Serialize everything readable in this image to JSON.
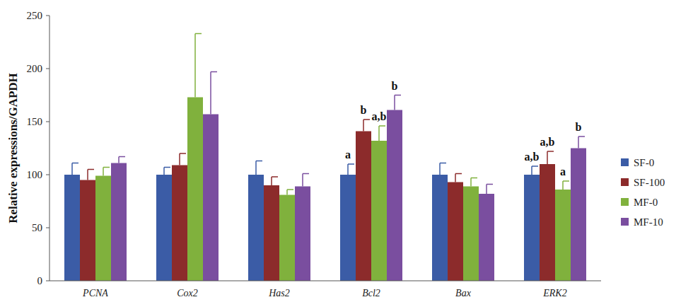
{
  "chart_data": {
    "type": "bar",
    "y_label": "Relative expressions/GAPDH",
    "categories": [
      "PCNA",
      "Cox2",
      "Has2",
      "Bcl2",
      "Bax",
      "ERK2"
    ],
    "series": [
      {
        "name": "SF-0",
        "color": "#3b5ca6",
        "values": [
          100,
          100,
          100,
          100,
          100,
          100
        ],
        "errors": [
          11,
          7,
          13,
          10,
          11,
          8
        ],
        "letters": [
          null,
          null,
          null,
          "a",
          null,
          "a,b"
        ]
      },
      {
        "name": "SF-100",
        "color": "#8c2b2b",
        "values": [
          95,
          109,
          90,
          141,
          93,
          110
        ],
        "errors": [
          10,
          11,
          8,
          11,
          8,
          12
        ],
        "letters": [
          null,
          null,
          null,
          "b",
          null,
          "a,b"
        ]
      },
      {
        "name": "MF-0",
        "color": "#80b13d",
        "values": [
          99,
          173,
          81,
          132,
          89,
          86
        ],
        "errors": [
          8,
          60,
          5,
          14,
          8,
          8
        ],
        "letters": [
          null,
          null,
          null,
          "a,b",
          null,
          "a"
        ]
      },
      {
        "name": "MF-10",
        "color": "#7a4e9f",
        "values": [
          111,
          157,
          89,
          161,
          82,
          125
        ],
        "errors": [
          6,
          40,
          12,
          14,
          9,
          11
        ],
        "letters": [
          null,
          null,
          null,
          "b",
          null,
          "b"
        ]
      }
    ],
    "ylim": [
      0,
      250
    ],
    "yticks": [
      0,
      50,
      100,
      150,
      200,
      250
    ],
    "grid": false,
    "legend": "right"
  }
}
